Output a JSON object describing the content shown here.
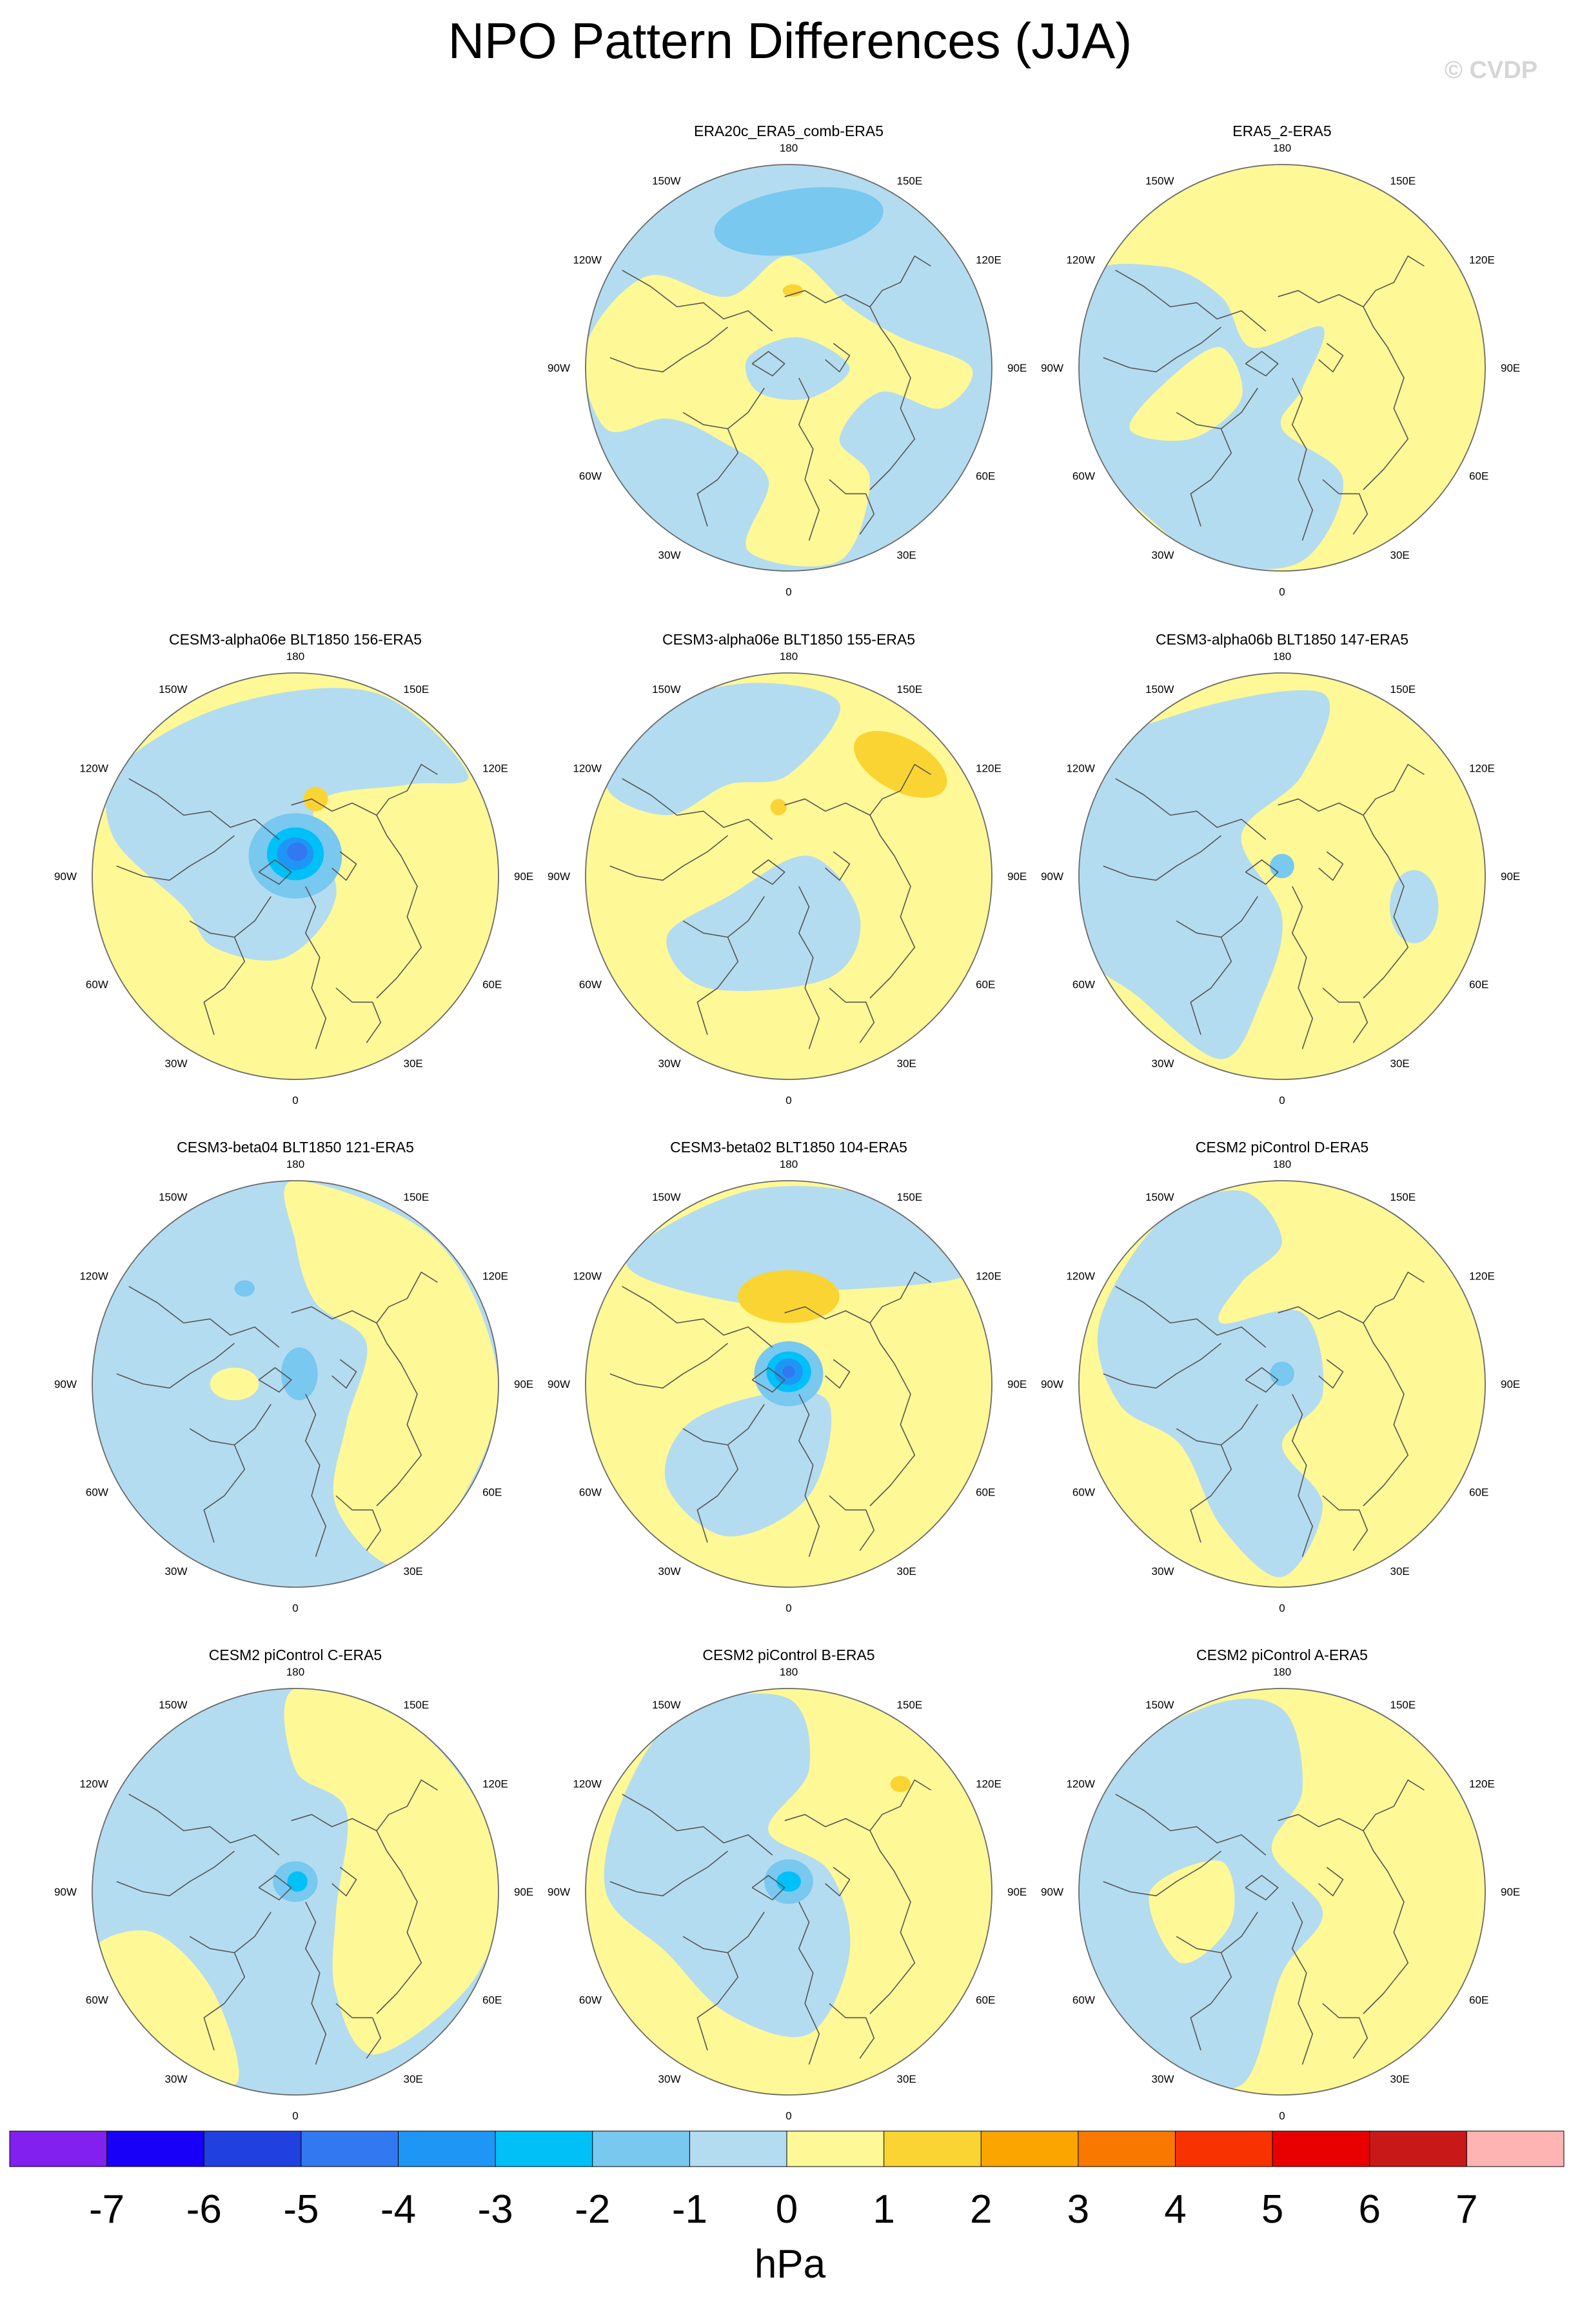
{
  "title": "NPO Pattern Differences (JJA)",
  "watermark": "© CVDP",
  "lon_labels": [
    "180",
    "150E",
    "120E",
    "90E",
    "60E",
    "30E",
    "0",
    "30W",
    "60W",
    "90W",
    "120W",
    "150W"
  ],
  "colors": {
    "neg_1": "#b4dcf0",
    "neg_2": "#78c8f0",
    "neg_3": "#00c0f8",
    "neg_4": "#1e96f5",
    "neg_5": "#3278f0",
    "neg_6": "#2040e0",
    "neg_7": "#1800f8",
    "neg_8": "#8220f0",
    "pos_1": "#fff896",
    "pos_2": "#fad432",
    "pos_3": "#faa500",
    "pos_4": "#f87800",
    "pos_5": "#f83200",
    "pos_6": "#e80000",
    "pos_7": "#c81818",
    "pos_8": "#ffb4b4",
    "coast": "#555555"
  },
  "panels": [
    {
      "title": "ERA20c_ERA5_comb-ERA5"
    },
    {
      "title": "ERA5_2-ERA5"
    },
    {
      "title": "CESM3-alpha06e BLT1850 156-ERA5"
    },
    {
      "title": "CESM3-alpha06e BLT1850 155-ERA5"
    },
    {
      "title": "CESM3-alpha06b BLT1850 147-ERA5"
    },
    {
      "title": "CESM3-beta04 BLT1850 121-ERA5"
    },
    {
      "title": "CESM3-beta02 BLT1850 104-ERA5"
    },
    {
      "title": "CESM2 piControl D-ERA5"
    },
    {
      "title": "CESM2 piControl C-ERA5"
    },
    {
      "title": "CESM2 piControl B-ERA5"
    },
    {
      "title": "CESM2 piControl A-ERA5"
    }
  ],
  "colorbar": {
    "tick_labels": [
      "-7",
      "-6",
      "-5",
      "-4",
      "-3",
      "-2",
      "-1",
      "0",
      "1",
      "2",
      "3",
      "4",
      "5",
      "6",
      "7"
    ],
    "unit": "hPa",
    "box_colors": [
      "#8220f0",
      "#1800f8",
      "#2040e0",
      "#3278f0",
      "#1e96f5",
      "#00c0f8",
      "#78c8f0",
      "#b4dcf0",
      "#fff896",
      "#fad432",
      "#faa500",
      "#f87800",
      "#f83200",
      "#e80000",
      "#c81818",
      "#ffb4b4"
    ]
  }
}
